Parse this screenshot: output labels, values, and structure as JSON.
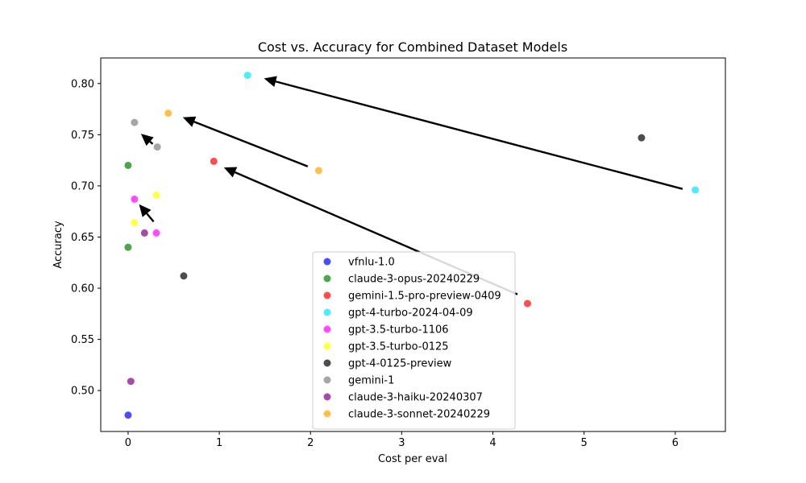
{
  "chart_data": {
    "type": "scatter",
    "title": "Cost vs. Accuracy for Combined Dataset Models",
    "xlabel": "Cost per eval",
    "ylabel": "Accuracy",
    "xlim": [
      -0.3,
      6.55
    ],
    "ylim": [
      0.46,
      0.825
    ],
    "xticks": [
      "0",
      "1",
      "2",
      "3",
      "4",
      "5",
      "6"
    ],
    "yticks": [
      "0.50",
      "0.55",
      "0.60",
      "0.65",
      "0.70",
      "0.75",
      "0.80"
    ],
    "grid": false,
    "legend_position": "bottom-center",
    "series": [
      {
        "name": "vfnlu-1.0",
        "color": "#0000ff",
        "points": [
          {
            "x": 0.0,
            "y": 0.476
          }
        ]
      },
      {
        "name": "claude-3-opus-20240229",
        "color": "#008000",
        "points": [
          {
            "x": 0.0,
            "y": 0.72
          },
          {
            "x": 0.0,
            "y": 0.64
          }
        ]
      },
      {
        "name": "gemini-1.5-pro-preview-0409",
        "color": "#ff0000",
        "points": [
          {
            "x": 0.94,
            "y": 0.724
          },
          {
            "x": 4.38,
            "y": 0.585
          }
        ]
      },
      {
        "name": "gpt-4-turbo-2024-04-09",
        "color": "#00e5ff",
        "points": [
          {
            "x": 1.31,
            "y": 0.808
          },
          {
            "x": 6.22,
            "y": 0.696
          }
        ]
      },
      {
        "name": "gpt-3.5-turbo-1106",
        "color": "#ff00ff",
        "points": [
          {
            "x": 0.07,
            "y": 0.687
          },
          {
            "x": 0.31,
            "y": 0.654
          }
        ]
      },
      {
        "name": "gpt-3.5-turbo-0125",
        "color": "#ffff00",
        "points": [
          {
            "x": 0.31,
            "y": 0.691
          },
          {
            "x": 0.07,
            "y": 0.664
          }
        ]
      },
      {
        "name": "gpt-4-0125-preview",
        "color": "#000000",
        "points": [
          {
            "x": 5.63,
            "y": 0.747
          },
          {
            "x": 0.61,
            "y": 0.612
          }
        ]
      },
      {
        "name": "gemini-1",
        "color": "#808080",
        "points": [
          {
            "x": 0.07,
            "y": 0.762
          },
          {
            "x": 0.32,
            "y": 0.738
          }
        ]
      },
      {
        "name": "claude-3-haiku-20240307",
        "color": "#800080",
        "points": [
          {
            "x": 0.18,
            "y": 0.654
          },
          {
            "x": 0.03,
            "y": 0.509
          }
        ]
      },
      {
        "name": "claude-3-sonnet-20240229",
        "color": "#ffa500",
        "points": [
          {
            "x": 0.44,
            "y": 0.771
          },
          {
            "x": 2.09,
            "y": 0.715
          }
        ]
      }
    ],
    "arrows": [
      {
        "from": {
          "x": 6.08,
          "y": 0.697
        },
        "to": {
          "x": 1.49,
          "y": 0.805
        }
      },
      {
        "from": {
          "x": 1.97,
          "y": 0.719
        },
        "to": {
          "x": 0.6,
          "y": 0.767
        }
      },
      {
        "from": {
          "x": 4.27,
          "y": 0.594
        },
        "to": {
          "x": 1.05,
          "y": 0.718
        }
      },
      {
        "from": {
          "x": 0.28,
          "y": 0.665
        },
        "to": {
          "x": 0.12,
          "y": 0.682
        }
      },
      {
        "from": {
          "x": 0.27,
          "y": 0.741
        },
        "to": {
          "x": 0.14,
          "y": 0.751
        }
      }
    ]
  }
}
